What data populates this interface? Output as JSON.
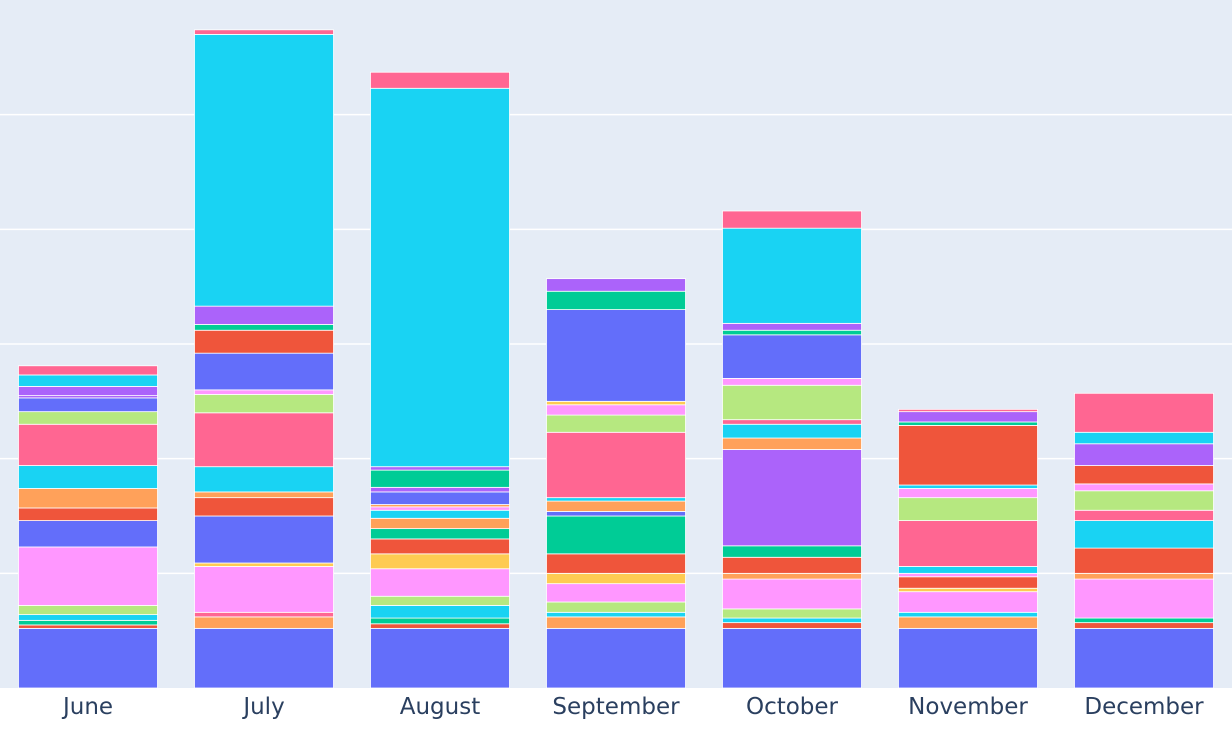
{
  "chart_data": {
    "type": "bar",
    "stacked": true,
    "categories": [
      "June",
      "July",
      "August",
      "September",
      "October",
      "November",
      "December"
    ],
    "ylim": [
      0,
      60
    ],
    "grid": true,
    "plot_background": "#e5ecf6",
    "grid_color": "#ffffff",
    "segment_outline": "#ffffff",
    "segments": [
      [
        {
          "value": 5.2,
          "color": "#636efa"
        },
        {
          "value": 0.3,
          "color": "#ef553b"
        },
        {
          "value": 0.4,
          "color": "#00cc96"
        },
        {
          "value": 0.5,
          "color": "#19d3f3"
        },
        {
          "value": 0.8,
          "color": "#b6e880"
        },
        {
          "value": 5.1,
          "color": "#ff97ff"
        },
        {
          "value": 2.3,
          "color": "#636efa"
        },
        {
          "value": 1.1,
          "color": "#ef553b"
        },
        {
          "value": 1.7,
          "color": "#ffa15a"
        },
        {
          "value": 2.0,
          "color": "#19d3f3"
        },
        {
          "value": 3.6,
          "color": "#ff6692"
        },
        {
          "value": 1.1,
          "color": "#b6e880"
        },
        {
          "value": 1.2,
          "color": "#636efa"
        },
        {
          "value": 0.2,
          "color": "#ab63fa"
        },
        {
          "value": 0.8,
          "color": "#ab63fa"
        },
        {
          "value": 1.0,
          "color": "#19d3f3"
        },
        {
          "value": 0.8,
          "color": "#ff6692"
        }
      ],
      [
        {
          "value": 5.2,
          "color": "#636efa"
        },
        {
          "value": 1.0,
          "color": "#ffa15a"
        },
        {
          "value": 0.4,
          "color": "#ff6692"
        },
        {
          "value": 4.0,
          "color": "#ff97ff"
        },
        {
          "value": 0.3,
          "color": "#fecb52"
        },
        {
          "value": 4.1,
          "color": "#636efa"
        },
        {
          "value": 1.6,
          "color": "#ef553b"
        },
        {
          "value": 0.5,
          "color": "#ffa15a"
        },
        {
          "value": 2.2,
          "color": "#19d3f3"
        },
        {
          "value": 4.7,
          "color": "#ff6692"
        },
        {
          "value": 1.6,
          "color": "#b6e880"
        },
        {
          "value": 0.4,
          "color": "#ff97ff"
        },
        {
          "value": 3.2,
          "color": "#636efa"
        },
        {
          "value": 2.0,
          "color": "#ef553b"
        },
        {
          "value": 0.5,
          "color": "#00cc96"
        },
        {
          "value": 1.6,
          "color": "#ab63fa"
        },
        {
          "value": 23.7,
          "color": "#19d3f3"
        },
        {
          "value": 0.4,
          "color": "#ff6692"
        }
      ],
      [
        {
          "value": 5.2,
          "color": "#636efa"
        },
        {
          "value": 0.4,
          "color": "#ef553b"
        },
        {
          "value": 0.5,
          "color": "#00cc96"
        },
        {
          "value": 1.1,
          "color": "#19d3f3"
        },
        {
          "value": 0.8,
          "color": "#b6e880"
        },
        {
          "value": 2.4,
          "color": "#ff97ff"
        },
        {
          "value": 1.3,
          "color": "#fecb52"
        },
        {
          "value": 1.3,
          "color": "#ef553b"
        },
        {
          "value": 0.9,
          "color": "#00cc96"
        },
        {
          "value": 0.9,
          "color": "#ffa15a"
        },
        {
          "value": 0.7,
          "color": "#19d3f3"
        },
        {
          "value": 0.3,
          "color": "#ff97ff"
        },
        {
          "value": 0.2,
          "color": "#ffa15a"
        },
        {
          "value": 1.1,
          "color": "#636efa"
        },
        {
          "value": 0.4,
          "color": "#ab63fa"
        },
        {
          "value": 1.5,
          "color": "#00cc96"
        },
        {
          "value": 0.3,
          "color": "#ab63fa"
        },
        {
          "value": 33.0,
          "color": "#19d3f3"
        },
        {
          "value": 1.4,
          "color": "#ff6692"
        }
      ],
      [
        {
          "value": 5.2,
          "color": "#636efa"
        },
        {
          "value": 1.0,
          "color": "#ffa15a"
        },
        {
          "value": 0.4,
          "color": "#19d3f3"
        },
        {
          "value": 0.9,
          "color": "#b6e880"
        },
        {
          "value": 1.6,
          "color": "#ff97ff"
        },
        {
          "value": 0.9,
          "color": "#fecb52"
        },
        {
          "value": 1.7,
          "color": "#ef553b"
        },
        {
          "value": 3.3,
          "color": "#00cc96"
        },
        {
          "value": 0.4,
          "color": "#636efa"
        },
        {
          "value": 0.9,
          "color": "#ffa15a"
        },
        {
          "value": 0.3,
          "color": "#19d3f3"
        },
        {
          "value": 5.7,
          "color": "#ff6692"
        },
        {
          "value": 1.5,
          "color": "#b6e880"
        },
        {
          "value": 0.9,
          "color": "#ff97ff"
        },
        {
          "value": 0.3,
          "color": "#fecb52"
        },
        {
          "value": 8.0,
          "color": "#636efa"
        },
        {
          "value": 1.6,
          "color": "#00cc96"
        },
        {
          "value": 1.1,
          "color": "#ab63fa"
        }
      ],
      [
        {
          "value": 5.2,
          "color": "#636efa"
        },
        {
          "value": 0.5,
          "color": "#ef553b"
        },
        {
          "value": 0.4,
          "color": "#19d3f3"
        },
        {
          "value": 0.8,
          "color": "#b6e880"
        },
        {
          "value": 2.6,
          "color": "#ff97ff"
        },
        {
          "value": 0.5,
          "color": "#ffa15a"
        },
        {
          "value": 1.4,
          "color": "#ef553b"
        },
        {
          "value": 1.0,
          "color": "#00cc96"
        },
        {
          "value": 8.4,
          "color": "#ab63fa"
        },
        {
          "value": 1.0,
          "color": "#ffa15a"
        },
        {
          "value": 1.2,
          "color": "#19d3f3"
        },
        {
          "value": 0.4,
          "color": "#ff6692"
        },
        {
          "value": 3.0,
          "color": "#b6e880"
        },
        {
          "value": 0.6,
          "color": "#ff97ff"
        },
        {
          "value": 3.8,
          "color": "#636efa"
        },
        {
          "value": 0.4,
          "color": "#00cc96"
        },
        {
          "value": 0.6,
          "color": "#ab63fa"
        },
        {
          "value": 8.3,
          "color": "#19d3f3"
        },
        {
          "value": 1.5,
          "color": "#ff6692"
        }
      ],
      [
        {
          "value": 5.2,
          "color": "#636efa"
        },
        {
          "value": 1.0,
          "color": "#ffa15a"
        },
        {
          "value": 0.4,
          "color": "#19d3f3"
        },
        {
          "value": 1.8,
          "color": "#ff97ff"
        },
        {
          "value": 0.3,
          "color": "#fecb52"
        },
        {
          "value": 1.0,
          "color": "#ef553b"
        },
        {
          "value": 0.3,
          "color": "#ff97ff"
        },
        {
          "value": 0.6,
          "color": "#19d3f3"
        },
        {
          "value": 4.0,
          "color": "#ff6692"
        },
        {
          "value": 2.0,
          "color": "#b6e880"
        },
        {
          "value": 0.8,
          "color": "#ff97ff"
        },
        {
          "value": 0.3,
          "color": "#19d3f3"
        },
        {
          "value": 5.2,
          "color": "#ef553b"
        },
        {
          "value": 0.3,
          "color": "#00cc96"
        },
        {
          "value": 0.9,
          "color": "#ab63fa"
        },
        {
          "value": 0.2,
          "color": "#ff6692"
        }
      ],
      [
        {
          "value": 5.2,
          "color": "#636efa"
        },
        {
          "value": 0.5,
          "color": "#ef553b"
        },
        {
          "value": 0.4,
          "color": "#00cc96"
        },
        {
          "value": 3.4,
          "color": "#ff97ff"
        },
        {
          "value": 0.5,
          "color": "#ffa15a"
        },
        {
          "value": 2.2,
          "color": "#ef553b"
        },
        {
          "value": 2.4,
          "color": "#19d3f3"
        },
        {
          "value": 0.9,
          "color": "#ff6692"
        },
        {
          "value": 1.7,
          "color": "#b6e880"
        },
        {
          "value": 0.6,
          "color": "#ff97ff"
        },
        {
          "value": 1.6,
          "color": "#ef553b"
        },
        {
          "value": 1.9,
          "color": "#ab63fa"
        },
        {
          "value": 1.0,
          "color": "#19d3f3"
        },
        {
          "value": 3.4,
          "color": "#ff6692"
        }
      ]
    ]
  }
}
